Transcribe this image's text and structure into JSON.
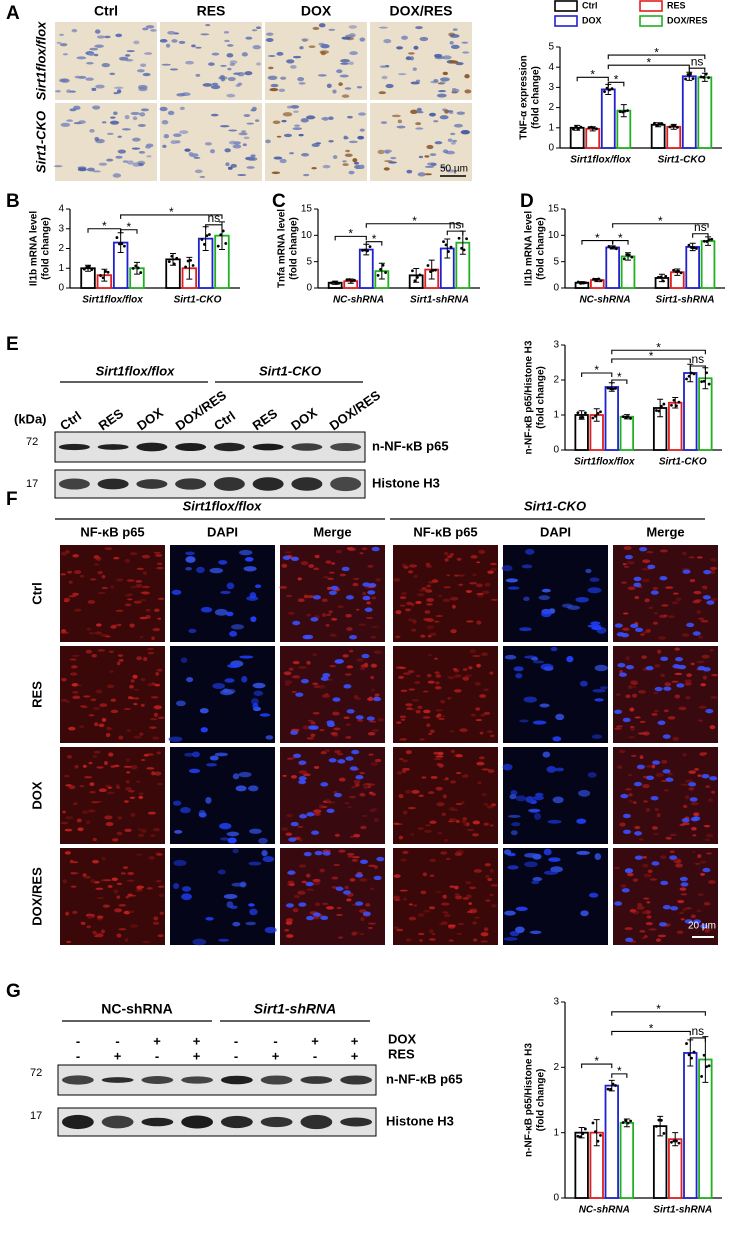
{
  "panel_labels": [
    "A",
    "B",
    "C",
    "D",
    "E",
    "F",
    "G"
  ],
  "panel_a": {
    "columns": [
      "Ctrl",
      "RES",
      "DOX",
      "DOX/RES"
    ],
    "rows": [
      "Sirt1flox/flox",
      "Sirt1-CKO"
    ],
    "scale_bar": "50 µm"
  },
  "panel_e": {
    "groups": [
      "Sirt1flox/flox",
      "Sirt1-CKO"
    ],
    "lanes": [
      "Ctrl",
      "RES",
      "DOX",
      "DOX/RES",
      "Ctrl",
      "RES",
      "DOX",
      "DOX/RES"
    ],
    "kda": "(kDa)",
    "markers": [
      "72",
      "17"
    ],
    "bands": [
      "n-NF-κB p65",
      "Histone H3"
    ]
  },
  "panel_f": {
    "groups": [
      "Sirt1flox/flox",
      "Sirt1-CKO"
    ],
    "channels": [
      "NF-κB p65",
      "DAPI",
      "Merge"
    ],
    "rows": [
      "Ctrl",
      "RES",
      "DOX",
      "DOX/RES"
    ],
    "scale_bar": "20 µm"
  },
  "panel_g": {
    "groups": [
      "NC-shRNA",
      "Sirt1-shRNA"
    ],
    "treatments": [
      {
        "name": "DOX",
        "signs": [
          "-",
          "-",
          "+",
          "+",
          "-",
          "-",
          "+",
          "+"
        ]
      },
      {
        "name": "RES",
        "signs": [
          "-",
          "+",
          "-",
          "+",
          "-",
          "+",
          "-",
          "+"
        ]
      }
    ],
    "markers": [
      "72",
      "17"
    ],
    "bands": [
      "n-NF-κB p65",
      "Histone H3"
    ]
  },
  "chart_data": [
    {
      "type": "bar",
      "ylabel": [
        "TNF-α expression",
        "(fold change)"
      ],
      "categories": [
        "Sirt1flox/flox",
        "Sirt1-CKO"
      ],
      "legend": "top",
      "series": [
        {
          "name": "Ctrl",
          "color": "#000000",
          "values": [
            1.0,
            1.15
          ],
          "errors": [
            0.12,
            0.1
          ]
        },
        {
          "name": "RES",
          "color": "#e02020",
          "values": [
            0.95,
            1.05
          ],
          "errors": [
            0.1,
            0.12
          ]
        },
        {
          "name": "DOX",
          "color": "#2020d0",
          "values": [
            2.9,
            3.55
          ],
          "errors": [
            0.25,
            0.2
          ]
        },
        {
          "name": "DOX/RES",
          "color": "#20b020",
          "values": [
            1.85,
            3.5
          ],
          "errors": [
            0.3,
            0.2
          ]
        }
      ],
      "ylim": [
        0,
        5
      ],
      "yticks": [
        0,
        1,
        2,
        3,
        4,
        5
      ],
      "brackets": [
        {
          "label": "*",
          "a": [
            0,
            0
          ],
          "b": [
            0,
            2
          ],
          "y": 3.5
        },
        {
          "label": "*",
          "a": [
            0,
            2
          ],
          "b": [
            0,
            3
          ],
          "y": 3.25
        },
        {
          "label": "*",
          "a": [
            0,
            2
          ],
          "b": [
            1,
            2
          ],
          "y": 4.1
        },
        {
          "label": "*",
          "a": [
            0,
            2
          ],
          "b": [
            1,
            3
          ],
          "y": 4.6
        },
        {
          "label": "ns",
          "a": [
            1,
            2
          ],
          "b": [
            1,
            3
          ],
          "y": 3.95
        }
      ]
    },
    {
      "type": "bar",
      "ylabel": [
        "Il1b mRNA level",
        "(fold change)"
      ],
      "categories": [
        "Sirt1flox/flox",
        "Sirt1-CKO"
      ],
      "series": [
        {
          "name": "Ctrl",
          "color": "#000000",
          "values": [
            1.0,
            1.45
          ],
          "errors": [
            0.15,
            0.3
          ]
        },
        {
          "name": "RES",
          "color": "#e02020",
          "values": [
            0.65,
            1.0
          ],
          "errors": [
            0.3,
            0.55
          ]
        },
        {
          "name": "DOX",
          "color": "#2020d0",
          "values": [
            2.3,
            2.5
          ],
          "errors": [
            0.5,
            0.6
          ]
        },
        {
          "name": "DOX/RES",
          "color": "#20b020",
          "values": [
            1.0,
            2.65
          ],
          "errors": [
            0.3,
            0.7
          ]
        }
      ],
      "ylim": [
        0,
        4
      ],
      "yticks": [
        0,
        1,
        2,
        3,
        4
      ],
      "brackets": [
        {
          "label": "*",
          "a": [
            0,
            0
          ],
          "b": [
            0,
            2
          ],
          "y": 3.0
        },
        {
          "label": "*",
          "a": [
            0,
            2
          ],
          "b": [
            0,
            3
          ],
          "y": 2.95
        },
        {
          "label": "*",
          "a": [
            0,
            2
          ],
          "b": [
            1,
            3
          ],
          "y": 3.7
        },
        {
          "label": "ns",
          "a": [
            1,
            2
          ],
          "b": [
            1,
            3
          ],
          "y": 3.2
        }
      ]
    },
    {
      "type": "bar",
      "ylabel": [
        "Tnfa mRNA level",
        "(fold change)"
      ],
      "categories": [
        "NC-shRNA",
        "Sirt1-shRNA"
      ],
      "series": [
        {
          "name": "Ctrl",
          "color": "#000000",
          "values": [
            1.0,
            2.4
          ],
          "errors": [
            0.3,
            1.3
          ]
        },
        {
          "name": "RES",
          "color": "#e02020",
          "values": [
            1.3,
            3.5
          ],
          "errors": [
            0.4,
            1.8
          ]
        },
        {
          "name": "DOX",
          "color": "#2020d0",
          "values": [
            7.3,
            7.5
          ],
          "errors": [
            1.0,
            1.8
          ]
        },
        {
          "name": "DOX/RES",
          "color": "#20b020",
          "values": [
            3.2,
            8.6
          ],
          "errors": [
            1.5,
            2.2
          ]
        }
      ],
      "ylim": [
        0,
        15
      ],
      "yticks": [
        0,
        5,
        10,
        15
      ],
      "brackets": [
        {
          "label": "*",
          "a": [
            0,
            0
          ],
          "b": [
            0,
            2
          ],
          "y": 9.8
        },
        {
          "label": "*",
          "a": [
            0,
            2
          ],
          "b": [
            0,
            3
          ],
          "y": 8.8
        },
        {
          "label": "*",
          "a": [
            0,
            2
          ],
          "b": [
            1,
            3
          ],
          "y": 12.2
        },
        {
          "label": "ns",
          "a": [
            1,
            2
          ],
          "b": [
            1,
            3
          ],
          "y": 10.8
        }
      ]
    },
    {
      "type": "bar",
      "ylabel": [
        "Il1b mRNA level",
        "(fold change)"
      ],
      "categories": [
        "NC-shRNA",
        "Sirt1-shRNA"
      ],
      "series": [
        {
          "name": "Ctrl",
          "color": "#000000",
          "values": [
            1.0,
            1.9
          ],
          "errors": [
            0.2,
            0.7
          ]
        },
        {
          "name": "RES",
          "color": "#e02020",
          "values": [
            1.5,
            3.0
          ],
          "errors": [
            0.3,
            0.6
          ]
        },
        {
          "name": "DOX",
          "color": "#2020d0",
          "values": [
            7.7,
            7.8
          ],
          "errors": [
            0.3,
            0.7
          ]
        },
        {
          "name": "DOX/RES",
          "color": "#20b020",
          "values": [
            6.0,
            8.9
          ],
          "errors": [
            0.7,
            0.8
          ]
        }
      ],
      "ylim": [
        0,
        15
      ],
      "yticks": [
        0,
        5,
        10,
        15
      ],
      "brackets": [
        {
          "label": "*",
          "a": [
            0,
            0
          ],
          "b": [
            0,
            2
          ],
          "y": 9.0
        },
        {
          "label": "*",
          "a": [
            0,
            2
          ],
          "b": [
            0,
            3
          ],
          "y": 9.0
        },
        {
          "label": "*",
          "a": [
            0,
            2
          ],
          "b": [
            1,
            3
          ],
          "y": 12.2
        },
        {
          "label": "ns",
          "a": [
            1,
            2
          ],
          "b": [
            1,
            3
          ],
          "y": 10.3
        }
      ]
    },
    {
      "type": "bar",
      "ylabel": [
        "n-NF-κB p65/Histone H3",
        "(fold change)"
      ],
      "categories": [
        "Sirt1flox/flox",
        "Sirt1-CKO"
      ],
      "series": [
        {
          "name": "Ctrl",
          "color": "#000000",
          "values": [
            1.0,
            1.2
          ],
          "errors": [
            0.12,
            0.25
          ]
        },
        {
          "name": "RES",
          "color": "#e02020",
          "values": [
            1.0,
            1.35
          ],
          "errors": [
            0.18,
            0.15
          ]
        },
        {
          "name": "DOX",
          "color": "#2020d0",
          "values": [
            1.8,
            2.2
          ],
          "errors": [
            0.12,
            0.25
          ]
        },
        {
          "name": "DOX/RES",
          "color": "#20b020",
          "values": [
            0.95,
            2.05
          ],
          "errors": [
            0.06,
            0.3
          ]
        }
      ],
      "ylim": [
        0,
        3
      ],
      "yticks": [
        0,
        1,
        2,
        3
      ],
      "brackets": [
        {
          "label": "*",
          "a": [
            0,
            0
          ],
          "b": [
            0,
            2
          ],
          "y": 2.2
        },
        {
          "label": "*",
          "a": [
            0,
            2
          ],
          "b": [
            0,
            3
          ],
          "y": 2.0
        },
        {
          "label": "*",
          "a": [
            0,
            2
          ],
          "b": [
            1,
            2
          ],
          "y": 2.6
        },
        {
          "label": "*",
          "a": [
            0,
            2
          ],
          "b": [
            1,
            3
          ],
          "y": 2.85
        },
        {
          "label": "ns",
          "a": [
            1,
            2
          ],
          "b": [
            1,
            3
          ],
          "y": 2.4
        }
      ]
    },
    {
      "type": "bar",
      "ylabel": [
        "n-NF-κB p65/Histone H3",
        "(fold change)"
      ],
      "categories": [
        "NC-shRNA",
        "Sirt1-shRNA"
      ],
      "series": [
        {
          "name": "Ctrl",
          "color": "#000000",
          "values": [
            1.0,
            1.1
          ],
          "errors": [
            0.08,
            0.15
          ]
        },
        {
          "name": "RES",
          "color": "#e02020",
          "values": [
            1.0,
            0.9
          ],
          "errors": [
            0.2,
            0.1
          ]
        },
        {
          "name": "DOX",
          "color": "#2020d0",
          "values": [
            1.72,
            2.22
          ],
          "errors": [
            0.08,
            0.2
          ]
        },
        {
          "name": "DOX/RES",
          "color": "#20b020",
          "values": [
            1.15,
            2.12
          ],
          "errors": [
            0.06,
            0.35
          ]
        }
      ],
      "ylim": [
        0,
        3
      ],
      "yticks": [
        0,
        1,
        2,
        3
      ],
      "brackets": [
        {
          "label": "*",
          "a": [
            0,
            0
          ],
          "b": [
            0,
            2
          ],
          "y": 2.05
        },
        {
          "label": "*",
          "a": [
            0,
            2
          ],
          "b": [
            0,
            3
          ],
          "y": 1.9
        },
        {
          "label": "*",
          "a": [
            0,
            2
          ],
          "b": [
            1,
            2
          ],
          "y": 2.55
        },
        {
          "label": "*",
          "a": [
            0,
            2
          ],
          "b": [
            1,
            3
          ],
          "y": 2.85
        },
        {
          "label": "ns",
          "a": [
            1,
            2
          ],
          "b": [
            1,
            3
          ],
          "y": 2.45
        }
      ]
    }
  ]
}
